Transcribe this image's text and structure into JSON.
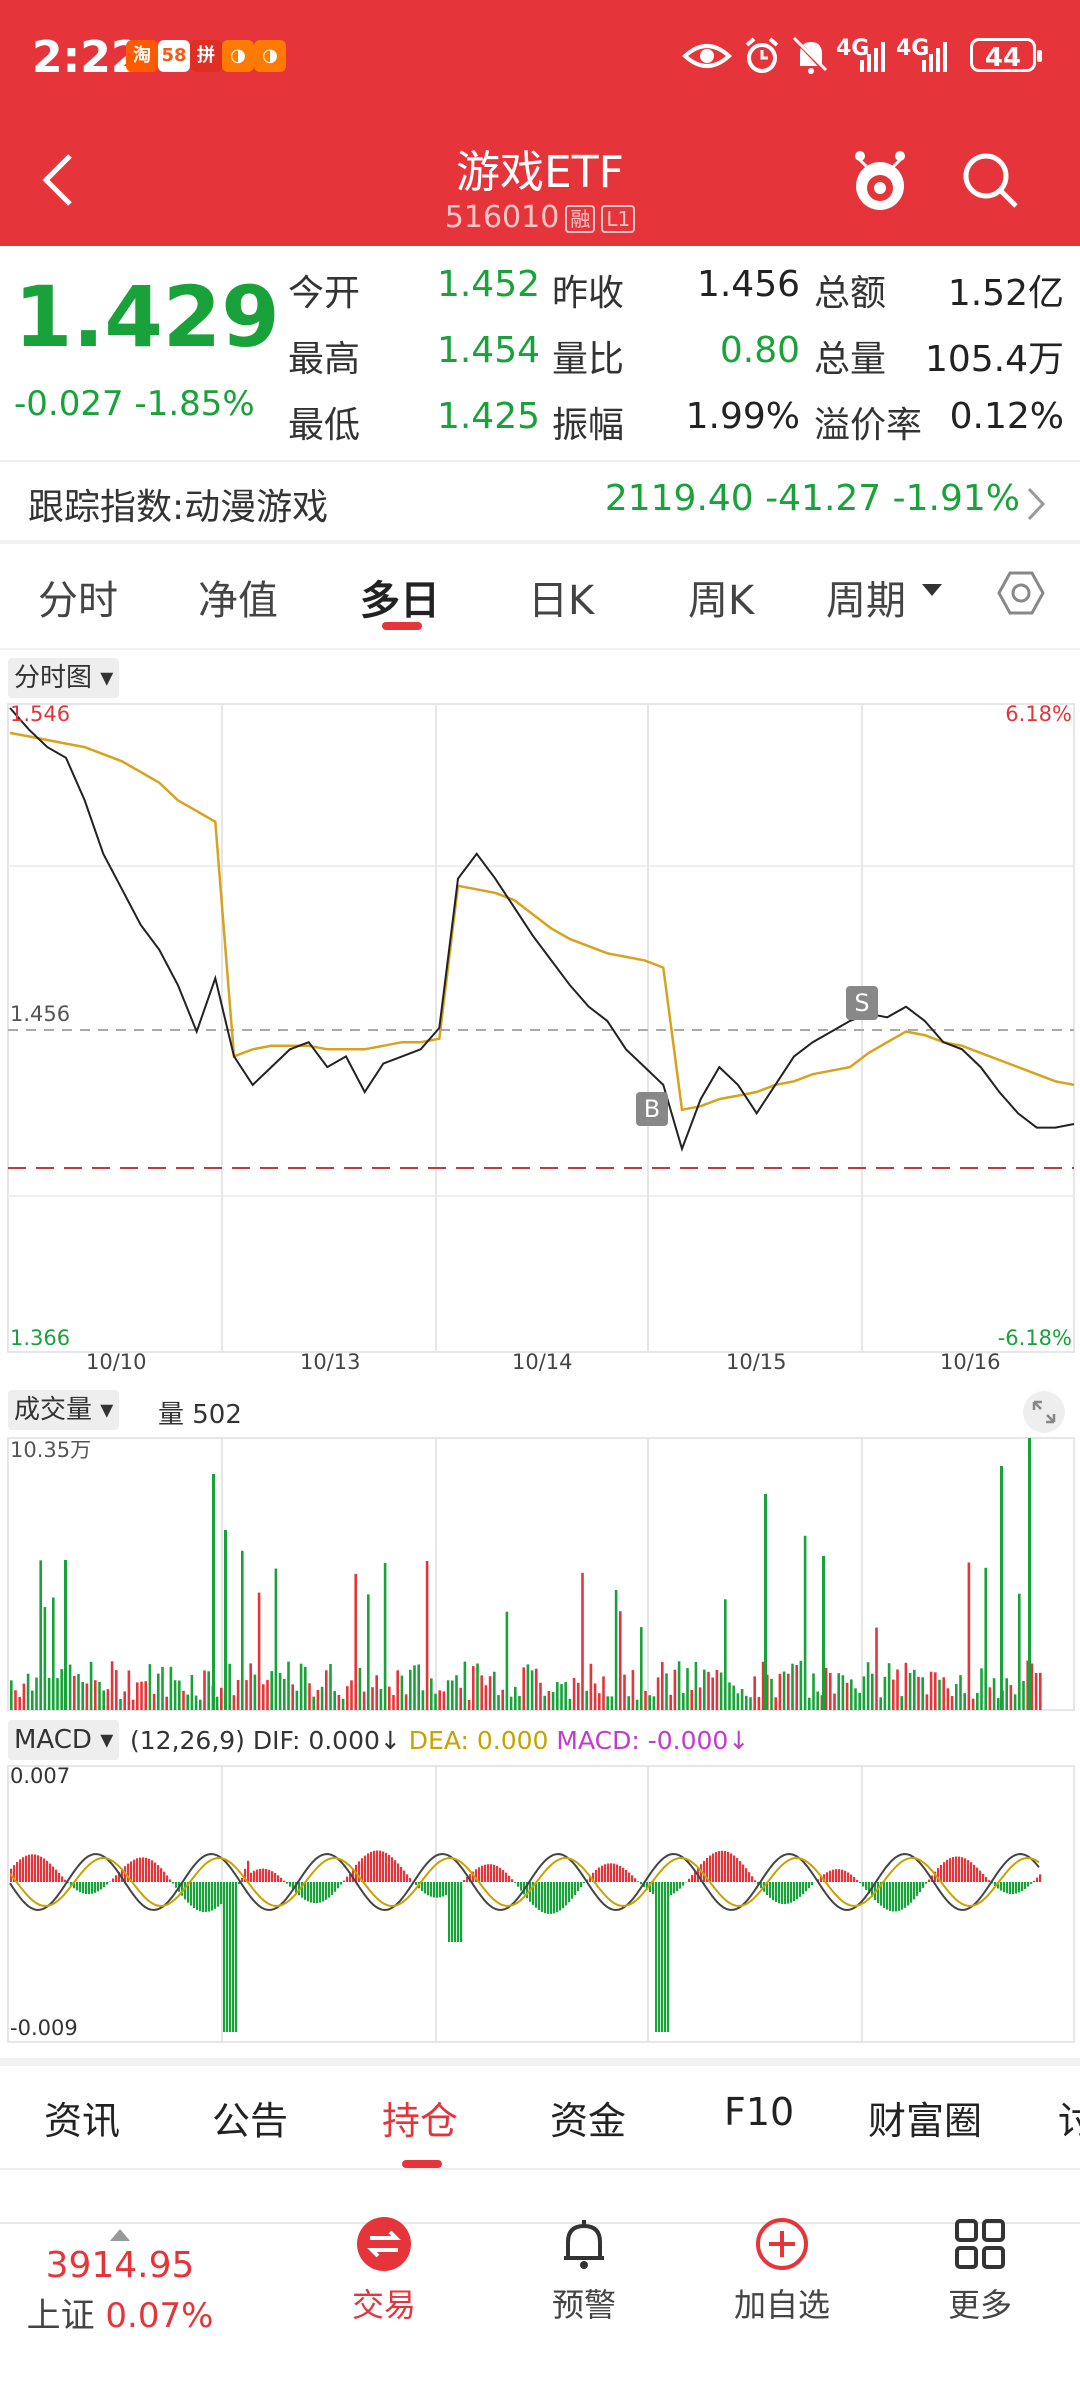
{
  "status": {
    "time": "2:22",
    "battery": "44",
    "sig1": "4G",
    "sig2": "4G",
    "apps": [
      {
        "label": "淘",
        "bg": "#ff5a00"
      },
      {
        "label": "58",
        "bg": "#ffffff",
        "fg": "#f25c19"
      },
      {
        "label": "拼",
        "bg": "#e02e24"
      },
      {
        "label": "◑",
        "bg": "#ff7a00"
      },
      {
        "label": "◑",
        "bg": "#ff7a00"
      }
    ]
  },
  "header": {
    "title": "游戏ETF",
    "code": "516010",
    "badge1": "融",
    "badge2": "L1"
  },
  "quote": {
    "price": "1.429",
    "change": "-0.027",
    "change_pct": "-1.85%",
    "rows": [
      [
        {
          "l": "今开",
          "v": "1.452",
          "c": "green"
        },
        {
          "l": "昨收",
          "v": "1.456",
          "c": "dark"
        },
        {
          "l": "总额",
          "v": "1.52亿",
          "c": "dark"
        }
      ],
      [
        {
          "l": "最高",
          "v": "1.454",
          "c": "green"
        },
        {
          "l": "量比",
          "v": "0.80",
          "c": "green"
        },
        {
          "l": "总量",
          "v": "105.4万",
          "c": "dark"
        }
      ],
      [
        {
          "l": "最低",
          "v": "1.425",
          "c": "green"
        },
        {
          "l": "振幅",
          "v": "1.99%",
          "c": "dark"
        },
        {
          "l": "溢价率",
          "v": "0.12%",
          "c": "dark"
        }
      ]
    ]
  },
  "tracking": {
    "label": "跟踪指数:动漫游戏",
    "value": "2119.40  -41.27  -1.91%"
  },
  "tabs": [
    "分时",
    "净值",
    "多日",
    "日K",
    "周K",
    "周期"
  ],
  "active_tab": 2,
  "chart_main": {
    "label": "分时图",
    "y_top": "1.546",
    "y_mid": "1.456",
    "y_bot": "1.366",
    "pct_top": "6.18%",
    "pct_bot": "-6.18%",
    "dates": [
      "10/10",
      "10/13",
      "10/14",
      "10/15",
      "10/16"
    ],
    "marker_b": "B",
    "marker_s": "S",
    "ylim": [
      1.366,
      1.546
    ],
    "price_line": [
      1.546,
      1.54,
      1.535,
      1.532,
      1.52,
      1.505,
      1.495,
      1.485,
      1.478,
      1.468,
      1.455,
      1.47,
      1.448,
      1.44,
      1.445,
      1.45,
      1.452,
      1.445,
      1.448,
      1.438,
      1.446,
      1.448,
      1.45,
      1.456,
      1.498,
      1.505,
      1.498,
      1.49,
      1.482,
      1.475,
      1.468,
      1.462,
      1.458,
      1.45,
      1.445,
      1.44,
      1.422,
      1.436,
      1.445,
      1.44,
      1.432,
      1.44,
      1.448,
      1.452,
      1.455,
      1.458,
      1.46,
      1.459,
      1.462,
      1.458,
      1.452,
      1.45,
      1.445,
      1.438,
      1.432,
      1.428,
      1.428,
      1.429
    ],
    "avg_line": [
      1.539,
      1.538,
      1.537,
      1.536,
      1.535,
      1.533,
      1.531,
      1.528,
      1.525,
      1.52,
      1.517,
      1.514,
      1.448,
      1.45,
      1.451,
      1.451,
      1.451,
      1.45,
      1.45,
      1.45,
      1.451,
      1.452,
      1.452,
      1.453,
      1.496,
      1.495,
      1.494,
      1.492,
      1.488,
      1.484,
      1.481,
      1.479,
      1.477,
      1.476,
      1.475,
      1.473,
      1.433,
      1.434,
      1.436,
      1.437,
      1.438,
      1.44,
      1.441,
      1.443,
      1.444,
      1.445,
      1.449,
      1.452,
      1.455,
      1.454,
      1.452,
      1.451,
      1.449,
      1.447,
      1.445,
      1.443,
      1.441,
      1.44
    ]
  },
  "chart_volume": {
    "label": "成交量",
    "vol": "量 502",
    "max": "10.35万"
  },
  "chart_macd": {
    "label": "MACD",
    "params": "(12,26,9)",
    "dif": "DIF: 0.000↓",
    "dea": "DEA: 0.000",
    "macd": "MACD: -0.000↓",
    "top": "0.007",
    "bot": "-0.009"
  },
  "bottom_tabs": [
    "资讯",
    "公告",
    "持仓",
    "资金",
    "F10",
    "财富圈",
    "讨"
  ],
  "active_bottom": 2,
  "nav": {
    "index_value": "3914.95",
    "index_name": "上证",
    "index_pct": "0.07%",
    "items": [
      "交易",
      "预警",
      "加自选",
      "更多"
    ]
  }
}
